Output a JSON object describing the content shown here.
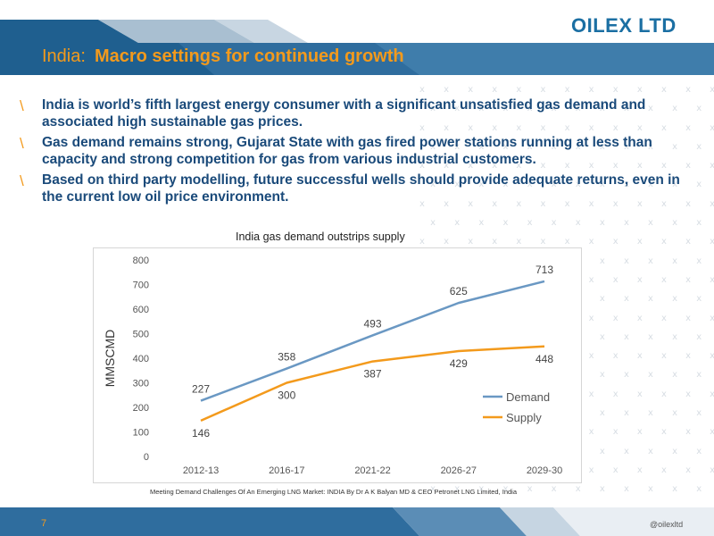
{
  "brand": {
    "logo": "OILEX LTD",
    "handle": "@oilexltd",
    "accent": "#f39a1c",
    "navy": "#1a4a7a"
  },
  "header": {
    "title_prefix": "India:",
    "title_main": "Macro settings for continued growth"
  },
  "bullets": [
    "India is world’s fifth largest energy consumer with a significant unsatisfied gas demand and associated high sustainable gas prices.",
    "Gas demand remains strong, Gujarat State with gas fired power stations running at less than capacity and strong competition for gas from various industrial customers.",
    "Based on third party modelling, future successful wells should provide adequate returns, even in the current low oil price environment."
  ],
  "bullet_marker": "\\",
  "chart_data": {
    "type": "line",
    "title": "India gas demand outstrips supply",
    "xlabel": "",
    "ylabel": "MMSCMD",
    "categories": [
      "2012-13",
      "2016-17",
      "2021-22",
      "2026-27",
      "2029-30"
    ],
    "series": [
      {
        "name": "Demand",
        "values": [
          227,
          358,
          493,
          625,
          713
        ],
        "color": "#6a98c3"
      },
      {
        "name": "Supply",
        "values": [
          146,
          300,
          387,
          429,
          448
        ],
        "color": "#f39a1c"
      }
    ],
    "ylim": [
      0,
      800
    ],
    "yticks": [
      0,
      100,
      200,
      300,
      400,
      500,
      600,
      700,
      800
    ],
    "grid": false,
    "legend_position": "right"
  },
  "source": "Meeting Demand Challenges Of An Emerging LNG Market: INDIA By Dr A K Balyan MD & CEO Petronet LNG Limited, India",
  "footer": {
    "page_number": "7"
  }
}
